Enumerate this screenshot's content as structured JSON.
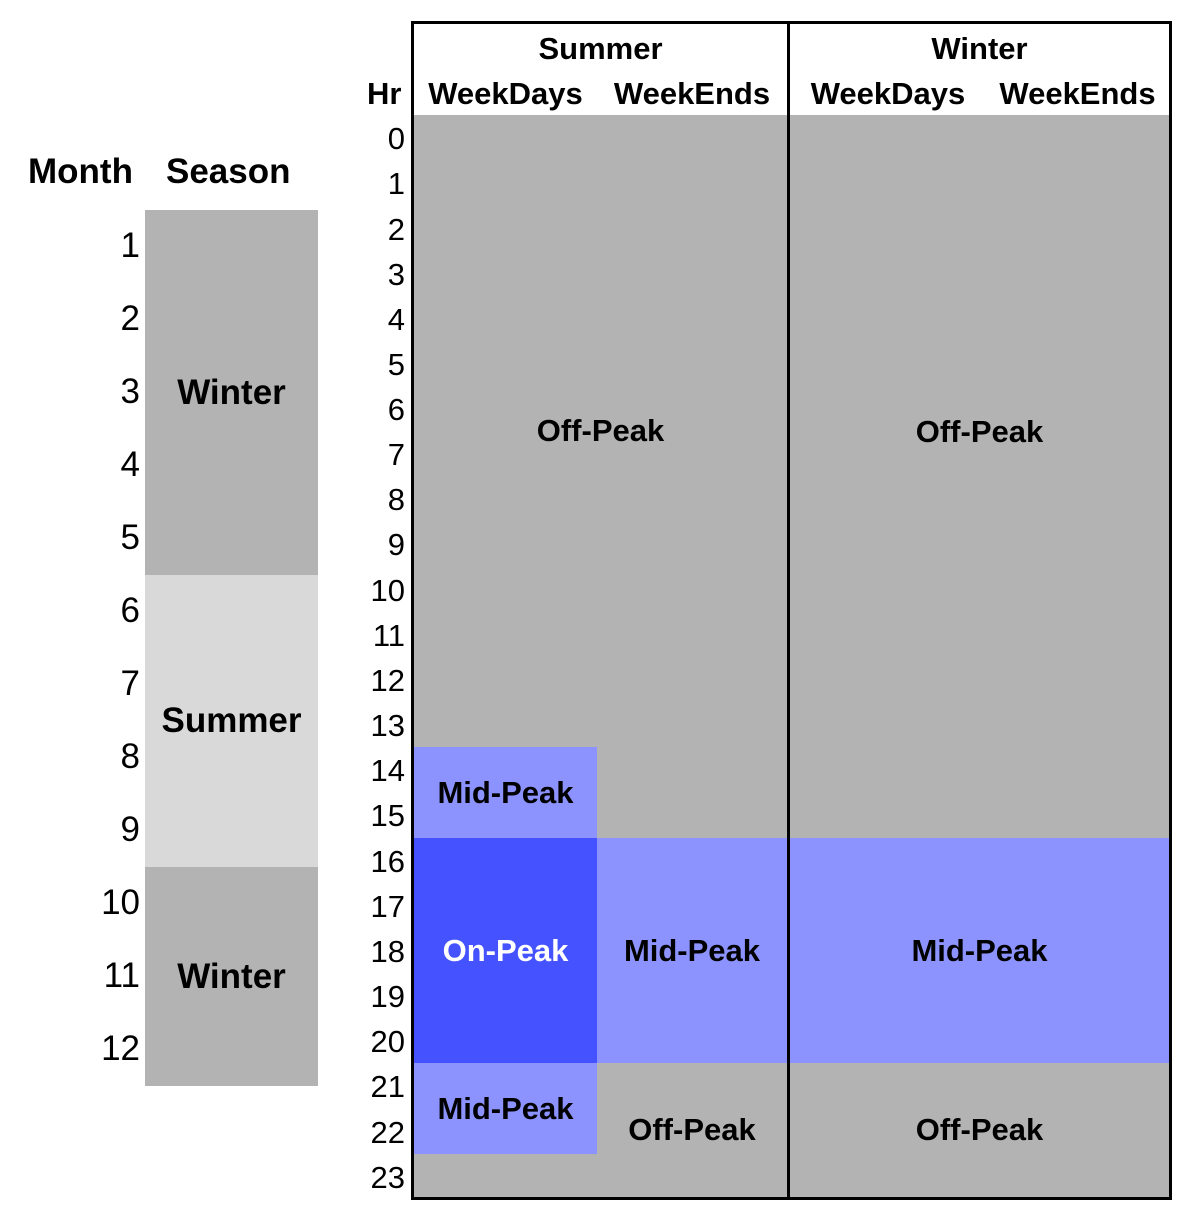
{
  "left_table": {
    "month_header": "Month",
    "season_header": "Season",
    "months": [
      "1",
      "2",
      "3",
      "4",
      "5",
      "6",
      "7",
      "8",
      "9",
      "10",
      "11",
      "12"
    ],
    "seasons": [
      {
        "label": "Winter",
        "months": [
          1,
          5
        ]
      },
      {
        "label": "Summer",
        "months": [
          6,
          9
        ]
      },
      {
        "label": "Winter",
        "months": [
          10,
          12
        ]
      }
    ]
  },
  "schedule": {
    "hr_header": "Hr",
    "hours": [
      "0",
      "1",
      "2",
      "3",
      "4",
      "5",
      "6",
      "7",
      "8",
      "9",
      "10",
      "11",
      "12",
      "13",
      "14",
      "15",
      "16",
      "17",
      "18",
      "19",
      "20",
      "21",
      "22",
      "23"
    ],
    "summer_label": "Summer",
    "winter_label": "Winter",
    "weekdays_label": "WeekDays",
    "weekends_label": "WeekEnds",
    "periods": {
      "off_peak": "Off-Peak",
      "mid_peak": "Mid-Peak",
      "on_peak": "On-Peak"
    },
    "blocks": [
      {
        "season": "Summer",
        "days": "WeekDays+WeekEnds",
        "hours": [
          0,
          13
        ],
        "period": "Off-Peak"
      },
      {
        "season": "Summer",
        "days": "WeekDays",
        "hours": [
          14,
          15
        ],
        "period": "Mid-Peak"
      },
      {
        "season": "Summer",
        "days": "WeekEnds",
        "hours": [
          14,
          15
        ],
        "period": "Off-Peak"
      },
      {
        "season": "Summer",
        "days": "WeekDays",
        "hours": [
          16,
          20
        ],
        "period": "On-Peak"
      },
      {
        "season": "Summer",
        "days": "WeekEnds",
        "hours": [
          16,
          20
        ],
        "period": "Mid-Peak"
      },
      {
        "season": "Summer",
        "days": "WeekDays",
        "hours": [
          21,
          22
        ],
        "period": "Mid-Peak"
      },
      {
        "season": "Summer",
        "days": "WeekDays",
        "hours": [
          23,
          23
        ],
        "period": "Off-Peak"
      },
      {
        "season": "Summer",
        "days": "WeekEnds",
        "hours": [
          21,
          23
        ],
        "period": "Off-Peak"
      },
      {
        "season": "Winter",
        "days": "WeekDays+WeekEnds",
        "hours": [
          0,
          15
        ],
        "period": "Off-Peak"
      },
      {
        "season": "Winter",
        "days": "WeekDays+WeekEnds",
        "hours": [
          16,
          20
        ],
        "period": "Mid-Peak"
      },
      {
        "season": "Winter",
        "days": "WeekDays+WeekEnds",
        "hours": [
          21,
          23
        ],
        "period": "Off-Peak"
      }
    ]
  },
  "colors": {
    "off_peak": "#b3b3b3",
    "mid_peak": "#8c93ff",
    "on_peak": "#4453ff",
    "summer_season": "#d9d9d9",
    "winter_season": "#b3b3b3"
  }
}
